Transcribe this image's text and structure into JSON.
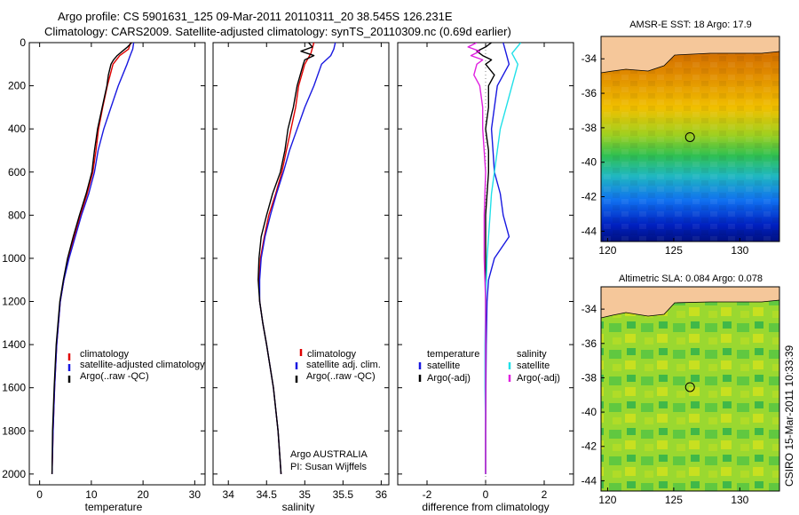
{
  "header": {
    "line1": "Argo profile: CS 5901631_125 09-Mar-2011 20110311_20 38.545S 126.231E",
    "line2": "Climatology: CARS2009. Satellite-adjusted climatology: synTS_20110309.nc (0.69d earlier)"
  },
  "side_stamp": "CSIRO 15-Mar-2011 10:33:39",
  "colors": {
    "red": "#e00000",
    "blue": "#1818e0",
    "black": "#000000",
    "cyan": "#20e0e8",
    "magenta": "#e020e0",
    "land": "#f5c79a"
  },
  "chart_data": [
    {
      "type": "line",
      "id": "temperature",
      "xlabel": "temperature",
      "ylabel": "",
      "xlim": [
        -2,
        32
      ],
      "ylim": [
        2050,
        0
      ],
      "y_inverted": true,
      "xticks": [
        0,
        10,
        20,
        30
      ],
      "yticks": [
        0,
        200,
        400,
        600,
        800,
        1000,
        1200,
        1400,
        1600,
        1800,
        2000
      ],
      "xtick_labels": [
        "0",
        "10",
        "20",
        "30"
      ],
      "ytick_labels": [
        "0",
        "200",
        "400",
        "600",
        "800",
        "1000",
        "1200",
        "1400",
        "1600",
        "1800",
        "2000"
      ],
      "legend": [
        "climatology",
        "satellite-adjusted climatology",
        "Argo(..raw -QC)"
      ],
      "series": [
        {
          "name": "climatology",
          "color": "red",
          "y": [
            0,
            30,
            60,
            100,
            200,
            300,
            400,
            500,
            600,
            700,
            800,
            900,
            1000,
            1100,
            1200,
            1400,
            1600,
            1800,
            2000
          ],
          "x": [
            17.6,
            17.2,
            15.5,
            14.2,
            13.1,
            12.2,
            11.4,
            10.9,
            10.3,
            9.2,
            7.9,
            6.7,
            5.6,
            4.7,
            4.0,
            3.3,
            2.9,
            2.6,
            2.4
          ]
        },
        {
          "name": "satellite-adjusted climatology",
          "color": "blue",
          "y": [
            0,
            30,
            60,
            100,
            200,
            300,
            400,
            500,
            600,
            700,
            800,
            900,
            1000,
            1100,
            1200,
            1400,
            1600,
            1800,
            2000
          ],
          "x": [
            18.2,
            18.0,
            17.5,
            16.9,
            15.2,
            13.8,
            12.4,
            11.3,
            10.6,
            9.5,
            8.1,
            6.9,
            5.7,
            4.7,
            4.0,
            3.3,
            2.9,
            2.6,
            2.4
          ]
        },
        {
          "name": "Argo(..raw -QC)",
          "color": "black",
          "y": [
            0,
            20,
            40,
            60,
            80,
            100,
            150,
            200,
            300,
            400,
            500,
            600,
            700,
            800,
            900,
            1000,
            1100,
            1200,
            1400,
            1600,
            1800,
            2000
          ],
          "x": [
            17.8,
            17.0,
            16.0,
            15.0,
            14.3,
            13.8,
            13.3,
            13.0,
            12.1,
            11.2,
            10.6,
            10.1,
            9.0,
            7.7,
            6.5,
            5.4,
            4.6,
            3.9,
            3.2,
            2.8,
            2.5,
            2.4
          ]
        }
      ]
    },
    {
      "type": "line",
      "id": "salinity",
      "xlabel": "salinity",
      "ylabel": "",
      "xlim": [
        33.8,
        36.1
      ],
      "ylim": [
        2050,
        0
      ],
      "y_inverted": true,
      "xticks": [
        34,
        34.5,
        35,
        35.5,
        36
      ],
      "yticks": [
        0,
        200,
        400,
        600,
        800,
        1000,
        1200,
        1400,
        1600,
        1800,
        2000
      ],
      "xtick_labels": [
        "34",
        "34.5",
        "35",
        "35.5",
        "36"
      ],
      "legend": [
        "climatology",
        "satellite adj. clim.",
        "Argo(..raw -QC)"
      ],
      "annotations": [
        "Argo AUSTRALIA",
        "PI: Susan Wijffels"
      ],
      "series": [
        {
          "name": "climatology",
          "color": "red",
          "y": [
            0,
            50,
            100,
            200,
            300,
            400,
            500,
            600,
            700,
            800,
            900,
            1000,
            1100,
            1200,
            1300,
            1400,
            1600,
            1800,
            2000
          ],
          "x": [
            35.12,
            35.08,
            35.0,
            34.92,
            34.88,
            34.82,
            34.76,
            34.7,
            34.62,
            34.53,
            34.47,
            34.42,
            34.4,
            34.41,
            34.45,
            34.5,
            34.59,
            34.65,
            34.69
          ]
        },
        {
          "name": "satellite adj. clim.",
          "color": "blue",
          "y": [
            0,
            30,
            60,
            100,
            200,
            300,
            400,
            500,
            600,
            700,
            800,
            900,
            1000,
            1100,
            1200,
            1300,
            1400,
            1600,
            1800,
            2000
          ],
          "x": [
            35.4,
            35.38,
            35.34,
            35.22,
            35.12,
            35.0,
            34.9,
            34.8,
            34.72,
            34.63,
            34.55,
            34.48,
            34.43,
            34.41,
            34.41,
            34.45,
            34.5,
            34.59,
            34.65,
            34.69
          ]
        },
        {
          "name": "Argo(..raw -QC)",
          "color": "black",
          "y": [
            0,
            20,
            40,
            60,
            80,
            100,
            200,
            300,
            400,
            500,
            600,
            700,
            800,
            900,
            1000,
            1100,
            1200,
            1300,
            1400,
            1600,
            1800,
            2000
          ],
          "x": [
            35.05,
            35.1,
            34.95,
            35.12,
            35.0,
            34.98,
            34.9,
            34.85,
            34.78,
            34.74,
            34.68,
            34.58,
            34.5,
            34.43,
            34.4,
            34.39,
            34.41,
            34.45,
            34.5,
            34.59,
            34.65,
            34.69
          ]
        }
      ]
    },
    {
      "type": "line",
      "id": "difference",
      "xlabel": "difference from climatology",
      "ylabel": "",
      "xlim": [
        -3,
        3
      ],
      "ylim": [
        2050,
        0
      ],
      "y_inverted": true,
      "xticks": [
        -2,
        0,
        2
      ],
      "yticks": [
        0,
        200,
        400,
        600,
        800,
        1000,
        1200,
        1400,
        1600,
        1800,
        2000
      ],
      "xtick_labels": [
        "-2",
        "0",
        "2"
      ],
      "legend_groups": [
        {
          "heading": "temperature",
          "items": [
            "satellite",
            "Argo(-adj)"
          ]
        },
        {
          "heading": "salinity",
          "items": [
            "satellite",
            "Argo(-adj)"
          ]
        }
      ],
      "series": [
        {
          "name": "temperature satellite",
          "color": "blue",
          "y": [
            0,
            50,
            100,
            200,
            300,
            400,
            500,
            600,
            700,
            800,
            900,
            1000,
            1100,
            1200,
            1400,
            1600,
            1800,
            2000
          ],
          "x": [
            0.6,
            0.7,
            0.8,
            0.4,
            0.3,
            0.2,
            0.25,
            0.3,
            0.5,
            0.6,
            0.8,
            0.3,
            0.1,
            0.05,
            0.02,
            0.01,
            0.0,
            0.0
          ]
        },
        {
          "name": "temperature Argo(-adj)",
          "color": "black",
          "y": [
            0,
            20,
            40,
            60,
            80,
            100,
            150,
            200,
            300,
            400,
            500,
            600,
            800,
            1000,
            1200,
            1400,
            1600,
            1800,
            2000
          ],
          "x": [
            0.2,
            0.0,
            -0.3,
            -0.1,
            0.2,
            0.0,
            0.3,
            0.1,
            0.1,
            0.0,
            0.1,
            0.1,
            0.0,
            0.0,
            0.0,
            0.0,
            0.0,
            0.0,
            0.0
          ]
        },
        {
          "name": "salinity satellite",
          "color": "cyan",
          "y": [
            0,
            50,
            100,
            200,
            300,
            400,
            500,
            600,
            700,
            800,
            1000,
            1200,
            1400,
            1600,
            1800,
            2000
          ],
          "x": [
            1.2,
            0.9,
            1.1,
            0.9,
            0.7,
            0.5,
            0.4,
            0.3,
            0.2,
            0.15,
            0.05,
            0.0,
            -0.02,
            -0.02,
            0.0,
            0.0
          ]
        },
        {
          "name": "salinity Argo(-adj)",
          "color": "magenta",
          "y": [
            0,
            20,
            40,
            60,
            80,
            100,
            150,
            200,
            300,
            400,
            600,
            800,
            1000,
            1200,
            1400,
            1600,
            1800,
            2000
          ],
          "x": [
            -0.3,
            -0.6,
            -0.2,
            -0.5,
            -0.1,
            -0.3,
            -0.4,
            -0.2,
            -0.1,
            -0.1,
            0.0,
            -0.05,
            -0.05,
            0.0,
            0.0,
            0.0,
            0.0,
            0.0
          ]
        }
      ]
    },
    {
      "type": "heatmap",
      "id": "sst-map",
      "title": "AMSR-E SST: 18 Argo: 17.9",
      "xlim": [
        119.5,
        133
      ],
      "ylim": [
        -44.6,
        -32.7
      ],
      "xticks": [
        120,
        125,
        130
      ],
      "yticks": [
        -34,
        -36,
        -38,
        -40,
        -42,
        -44
      ],
      "xtick_labels": [
        "120",
        "125",
        "130"
      ],
      "ytick_labels": [
        "-34",
        "-36",
        "-38",
        "-40",
        "-42",
        "-44"
      ],
      "float_position": {
        "lon": 126.231,
        "lat": -38.545
      }
    },
    {
      "type": "heatmap",
      "id": "sla-map",
      "title": "Altimetric SLA: 0.084 Argo: 0.078",
      "xlim": [
        119.5,
        133
      ],
      "ylim": [
        -44.6,
        -32.7
      ],
      "xticks": [
        120,
        125,
        130
      ],
      "yticks": [
        -34,
        -36,
        -38,
        -40,
        -42,
        -44
      ],
      "xtick_labels": [
        "120",
        "125",
        "130"
      ],
      "ytick_labels": [
        "-34",
        "-36",
        "-38",
        "-40",
        "-42",
        "-44"
      ],
      "float_position": {
        "lon": 126.231,
        "lat": -38.545
      }
    }
  ]
}
